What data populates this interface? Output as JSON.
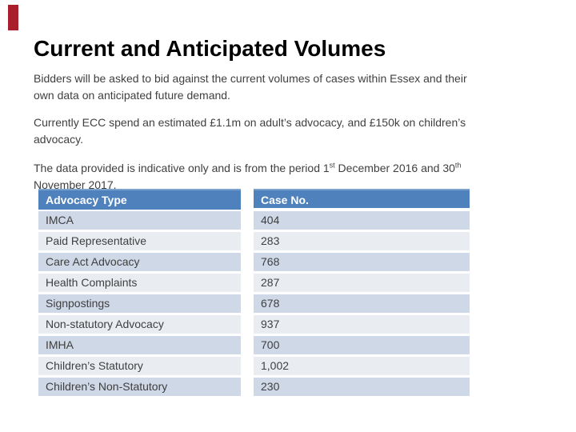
{
  "slide": {
    "accent_bar_color": "#A91E2C",
    "title": "Current and Anticipated Volumes",
    "paragraphs": {
      "p1": "Bidders will be asked to bid against the current volumes of cases within Essex and their\nown data on anticipated future demand.",
      "p2": "Currently ECC spend an estimated £1.1m on adult’s advocacy, and £150k on children’s\nadvocacy.",
      "p3_part1": "The data provided is indicative only and is from the period 1",
      "p3_sup1": "st",
      "p3_part2": " December 2016 and 30",
      "p3_sup2": "th",
      "p3_part3": "\nNovember 2017."
    },
    "table": {
      "header_bg": "#4F81BD",
      "band_dark": "#CED8E6",
      "band_light": "#E9EDF2",
      "headers": [
        "Advocacy Type",
        "Case No."
      ],
      "rows": [
        {
          "label": "IMCA",
          "value": "404"
        },
        {
          "label": "Paid Representative",
          "value": "283"
        },
        {
          "label": "Care Act Advocacy",
          "value": "768"
        },
        {
          "label": "Health Complaints",
          "value": "287"
        },
        {
          "label": "Signpostings",
          "value": "678"
        },
        {
          "label": "Non-statutory Advocacy",
          "value": "937"
        },
        {
          "label": "IMHA",
          "value": "700"
        },
        {
          "label": "Children’s Statutory",
          "value": "1,002"
        },
        {
          "label": "Children’s Non-Statutory",
          "value": "230"
        }
      ]
    }
  }
}
